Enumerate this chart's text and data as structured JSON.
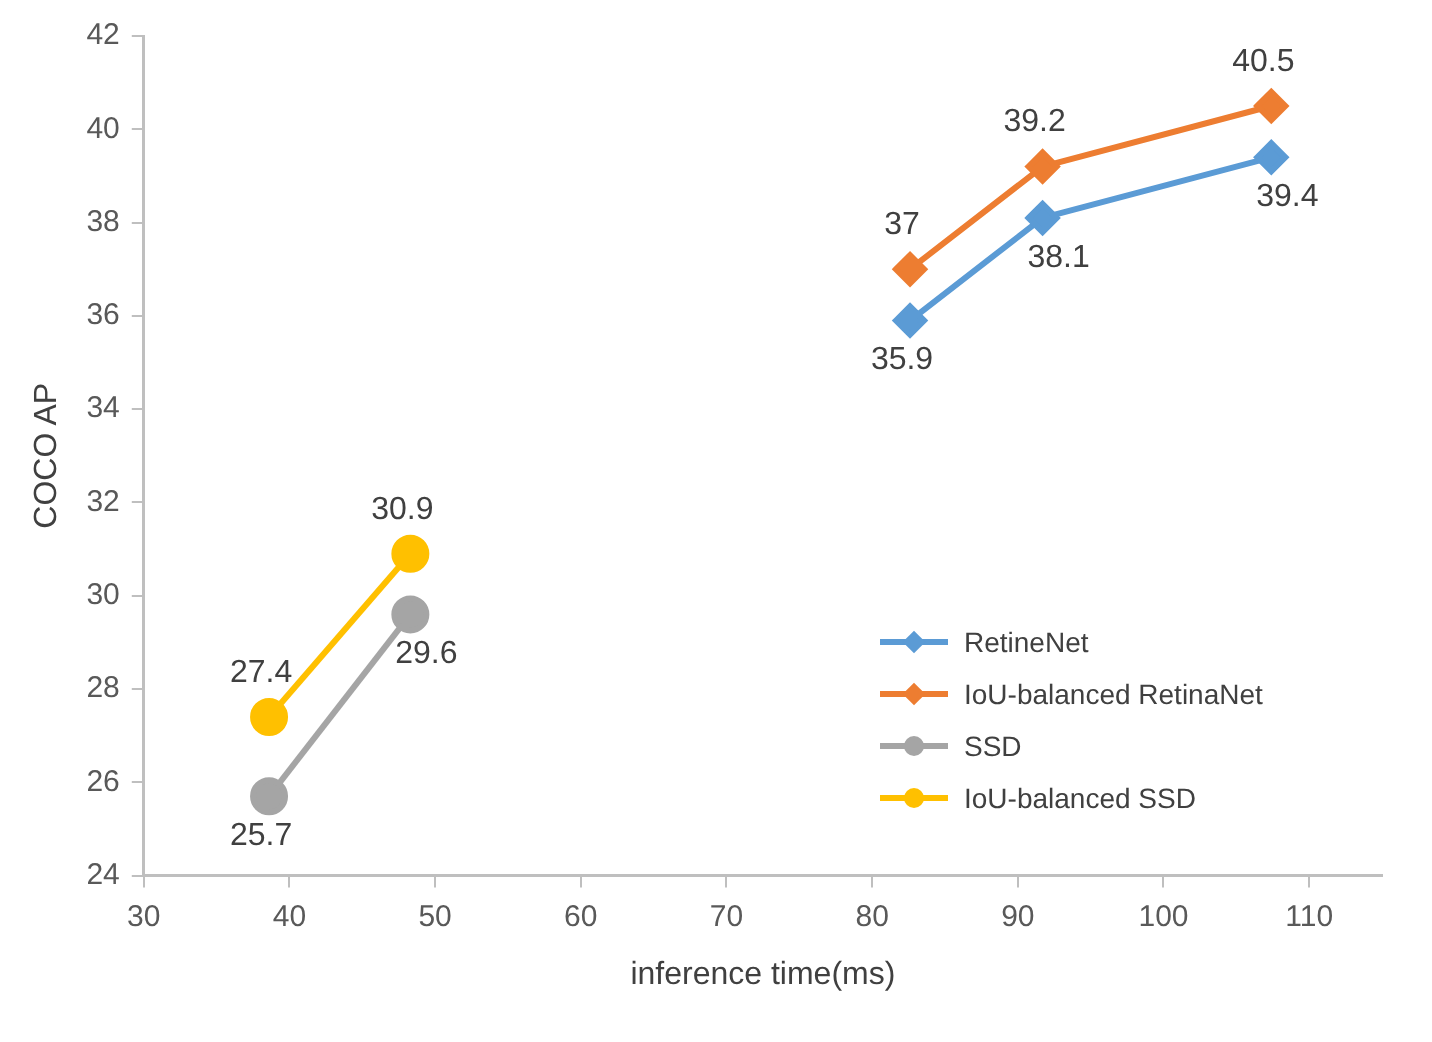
{
  "chart_data": {
    "type": "line",
    "xlabel": "inference time(ms)",
    "ylabel": "COCO AP",
    "xlim": [
      30,
      115
    ],
    "xticks": [
      30,
      40,
      50,
      60,
      70,
      80,
      90,
      100,
      110
    ],
    "ylim": [
      24,
      42
    ],
    "yticks": [
      24,
      26,
      28,
      30,
      32,
      34,
      36,
      38,
      40,
      42
    ],
    "grid": false,
    "legend": "right",
    "data_labels": true,
    "series": [
      {
        "name": "RetineNet",
        "color": "#5b9bd5",
        "marker": "diamond",
        "x": [
          82.6,
          91.7,
          107.4
        ],
        "values": [
          35.9,
          38.1,
          39.4
        ]
      },
      {
        "name": "IoU-balanced RetinaNet",
        "color": "#ed7d31",
        "marker": "diamond",
        "x": [
          82.6,
          91.7,
          107.4
        ],
        "values": [
          37,
          39.2,
          40.5
        ]
      },
      {
        "name": "SSD",
        "color": "#a5a5a5",
        "marker": "circle",
        "x": [
          38.6,
          48.3
        ],
        "values": [
          25.7,
          29.6
        ]
      },
      {
        "name": "IoU-balanced SSD",
        "color": "#ffc000",
        "marker": "circle",
        "x": [
          38.6,
          48.3
        ],
        "values": [
          27.4,
          30.9
        ]
      }
    ]
  }
}
